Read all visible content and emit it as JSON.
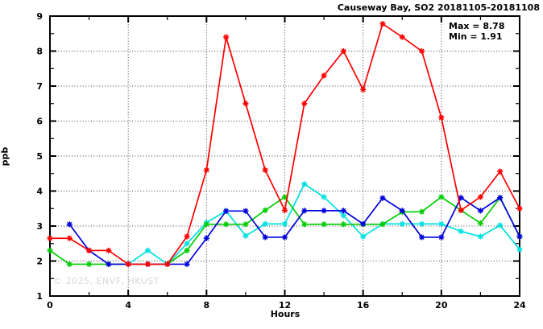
{
  "chart_data": {
    "type": "line",
    "title": "Causeway Bay, SO2 20181105-20181108",
    "xlabel": "Hours",
    "ylabel": "ppb",
    "xlim": [
      0,
      24
    ],
    "ylim": [
      1,
      9
    ],
    "xticks_major": [
      0,
      4,
      8,
      12,
      16,
      20,
      24
    ],
    "xtick_minor_step": 2,
    "yticks_major": [
      1,
      2,
      3,
      4,
      5,
      6,
      7,
      8,
      9
    ],
    "ytick_minor_step": 0.5,
    "grid": {
      "style": "dotted",
      "vertical_at_hours": [
        4,
        8,
        12,
        16,
        20
      ],
      "horizontal_at_ppb": [
        2,
        3,
        4,
        5,
        6,
        7,
        8
      ]
    },
    "legend_position": "none",
    "x": [
      0,
      1,
      2,
      3,
      4,
      5,
      6,
      7,
      8,
      9,
      10,
      11,
      12,
      13,
      14,
      15,
      16,
      17,
      18,
      19,
      20,
      21,
      22,
      23,
      24
    ],
    "series": [
      {
        "name": "cyan-line",
        "color": "#00e0e0",
        "values": [
          null,
          null,
          null,
          null,
          1.91,
          2.3,
          1.91,
          2.5,
          3.1,
          3.43,
          2.72,
          3.06,
          3.06,
          4.2,
          3.83,
          3.3,
          2.7,
          3.06,
          3.06,
          3.06,
          3.06,
          2.85,
          2.7,
          3.02,
          2.33
        ]
      },
      {
        "name": "green-line",
        "color": "#00cc00",
        "values": [
          2.3,
          1.91,
          1.91,
          1.91,
          1.91,
          1.91,
          1.91,
          2.3,
          3.05,
          3.05,
          3.05,
          3.45,
          3.83,
          3.05,
          3.05,
          3.05,
          3.05,
          3.05,
          3.4,
          3.41,
          3.83,
          3.45,
          3.08,
          3.81,
          2.7
        ]
      },
      {
        "name": "blue-line",
        "color": "#0000dd",
        "values": [
          null,
          3.05,
          2.3,
          1.91,
          1.91,
          1.91,
          1.91,
          1.91,
          2.65,
          3.43,
          3.43,
          2.68,
          2.68,
          3.44,
          3.44,
          3.44,
          3.06,
          3.8,
          3.44,
          2.68,
          2.68,
          3.81,
          3.44,
          3.81,
          2.7
        ]
      },
      {
        "name": "red-line",
        "color": "#ff0000",
        "values": [
          2.65,
          2.65,
          2.3,
          2.3,
          1.91,
          1.91,
          1.91,
          2.7,
          4.6,
          8.4,
          6.5,
          4.6,
          3.45,
          6.5,
          7.3,
          8.0,
          6.9,
          8.78,
          8.4,
          8.0,
          6.1,
          3.45,
          3.83,
          4.56,
          3.5
        ]
      }
    ],
    "annotations": {
      "max_label": "Max = 8.78",
      "min_label": "Min = 1.91",
      "max_value": 8.78,
      "min_value": 1.91
    }
  },
  "watermark": "© 2025, ENVF, HKUST",
  "colors": {
    "axis": "#000000",
    "grid": "#404040",
    "watermark": "#d8d8d8",
    "background": "#ffffff"
  }
}
